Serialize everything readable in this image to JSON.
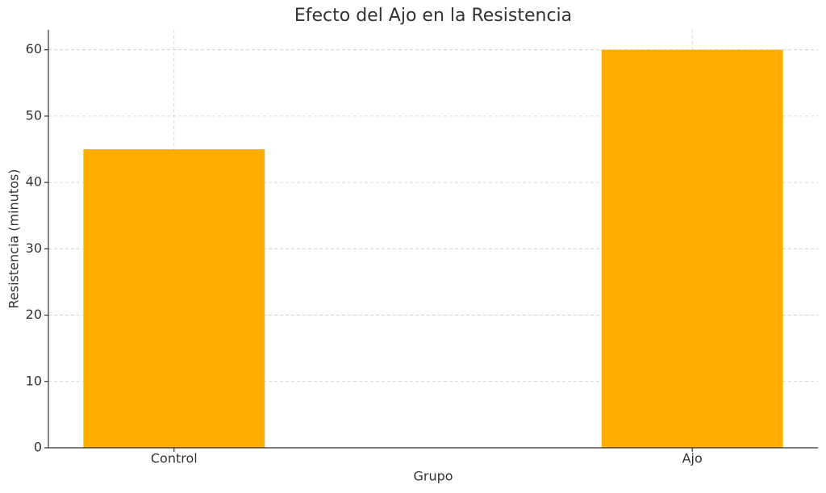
{
  "chart_data": {
    "type": "bar",
    "title": "Efecto del Ajo en la Resistencia",
    "x_label": "Grupo",
    "y_label": "Resistencia (minutos)",
    "categories": [
      "Control",
      "Ajo"
    ],
    "values": [
      45,
      60
    ],
    "color": "#ffae00",
    "ylim": [
      0,
      63
    ],
    "yticks": [
      0,
      10,
      20,
      30,
      40,
      50,
      60
    ],
    "grid": true
  }
}
